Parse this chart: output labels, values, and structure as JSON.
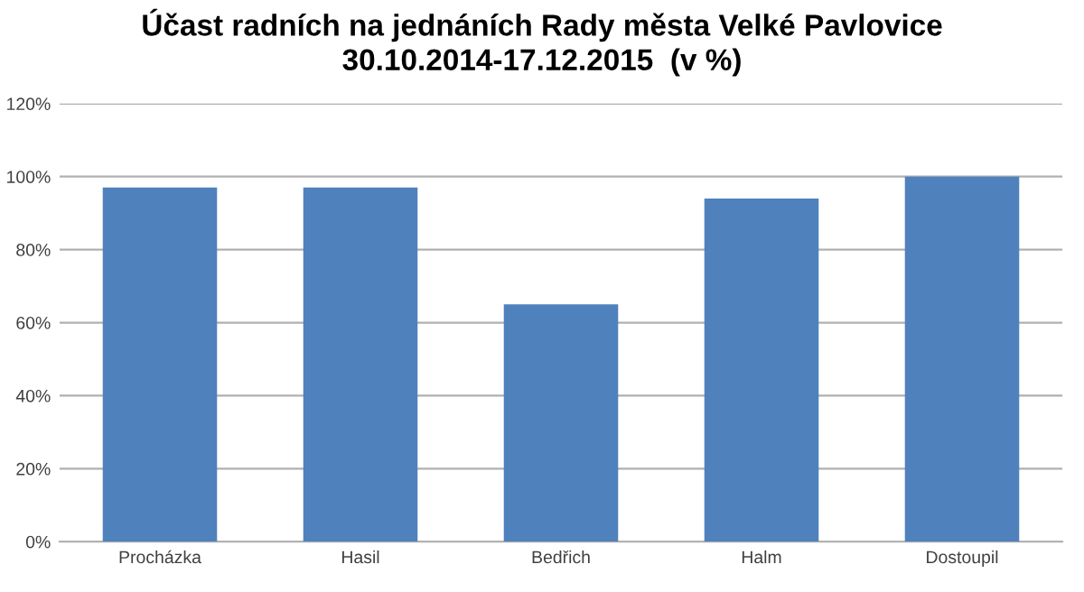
{
  "chart_data": {
    "type": "bar",
    "title": "Účast radních na jednáních Rady města Velké Pavlovice\n30.10.2014-17.12.2015  (v %)",
    "categories": [
      "Procházka",
      "Hasil",
      "Bedřich",
      "Halm",
      "Dostoupil"
    ],
    "values": [
      97,
      97,
      65,
      94,
      100
    ],
    "color": "#4f81bd",
    "ylim": [
      0,
      120
    ],
    "yticks": [
      {
        "value": 0,
        "label": "0%"
      },
      {
        "value": 20,
        "label": "20%"
      },
      {
        "value": 40,
        "label": "40%"
      },
      {
        "value": 60,
        "label": "60%"
      },
      {
        "value": 80,
        "label": "80%"
      },
      {
        "value": 100,
        "label": "100%"
      },
      {
        "value": 120,
        "label": "120%"
      }
    ],
    "grid": "y",
    "legend": false
  }
}
